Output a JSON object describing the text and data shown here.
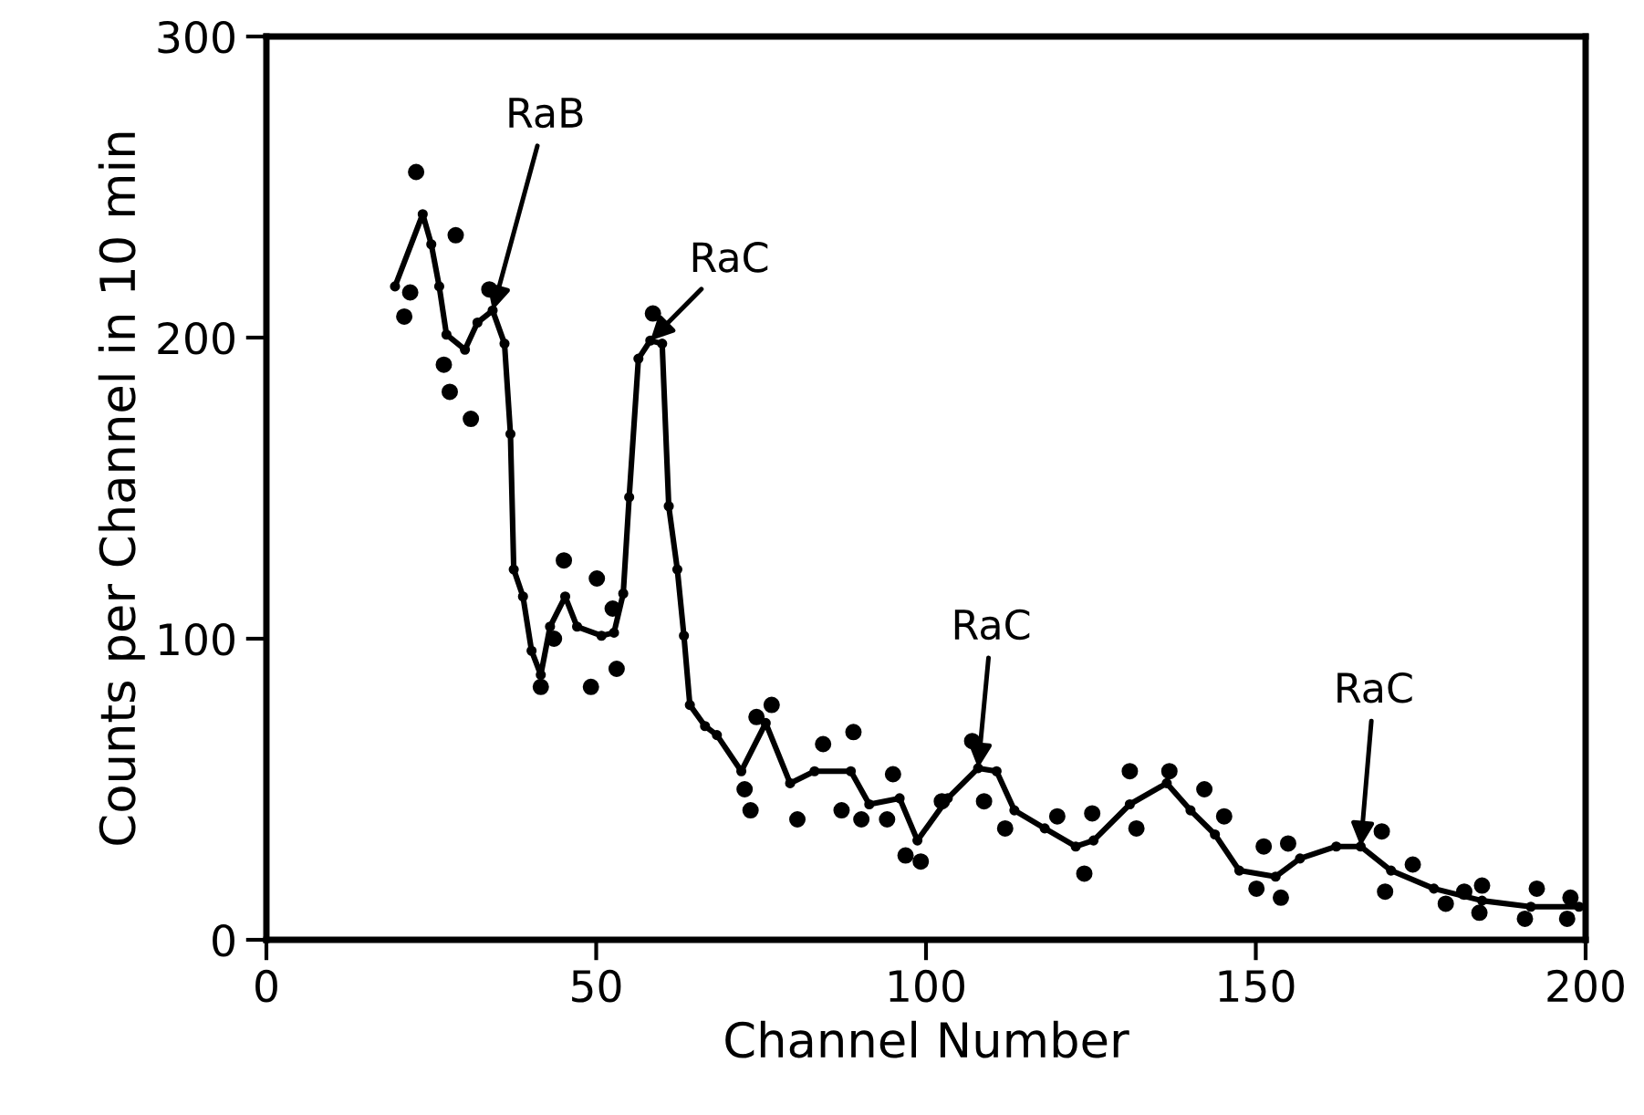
{
  "chart_data": {
    "type": "scatter",
    "xlabel": "Channel Number",
    "ylabel": "Counts per Channel in 10 min",
    "xlim": [
      0,
      200
    ],
    "ylim": [
      0,
      300
    ],
    "xticks": [
      0,
      50,
      100,
      150,
      200
    ],
    "yticks": [
      0,
      100,
      200,
      300
    ],
    "grid": false,
    "legend": false,
    "series": [
      {
        "color": "#000000",
        "marker": "circle",
        "x": [
          20.9,
          21.8,
          22.7,
          26.9,
          27.8,
          28.7,
          31,
          33.8,
          41.6,
          43.6,
          45.1,
          49.2,
          50.1,
          52.5,
          53.1,
          58.6,
          72.5,
          73.4,
          74.3,
          76.6,
          80.5,
          84.4,
          87.2,
          89,
          90.2,
          94.1,
          95,
          96.9,
          99.2,
          102.4,
          107,
          108.8,
          112,
          119.9,
          124,
          125.2,
          130.9,
          131.9,
          136.9,
          142.2,
          145.2,
          150.1,
          151.2,
          153.8,
          154.9,
          169.1,
          169.6,
          173.8,
          178.8,
          181.6,
          183.9,
          184.3,
          190.8,
          192.6,
          197.2,
          197.7
        ],
        "values": [
          207,
          215,
          255,
          191,
          182,
          234,
          173,
          216,
          84,
          100,
          126,
          84,
          120,
          110,
          90,
          208,
          50,
          43,
          74,
          78,
          40,
          65,
          43,
          69,
          40,
          40,
          55,
          28,
          26,
          46,
          66,
          46,
          37,
          41,
          22,
          42,
          56,
          37,
          56,
          50,
          41,
          17,
          31,
          14,
          32,
          36,
          16,
          25,
          12,
          16,
          9,
          18,
          7,
          17,
          7,
          14
        ]
      },
      {
        "type": "line",
        "color": "#000000",
        "marker": "circle",
        "line_style": "solid",
        "x": [
          19.5,
          23.7,
          25,
          26.2,
          27.3,
          30.1,
          32,
          34.3,
          36.1,
          37,
          37.5,
          38.9,
          40.2,
          41.6,
          43,
          45.3,
          47.1,
          50.8,
          52.7,
          54.1,
          55,
          56.4,
          58.2,
          60,
          61,
          62.3,
          63.3,
          64.2,
          66.5,
          68.3,
          72,
          75.7,
          79.4,
          83.1,
          88.6,
          91.4,
          96,
          98.7,
          103.3,
          107.9,
          110.7,
          113.4,
          118,
          122.7,
          125.4,
          130.9,
          136.5,
          140.1,
          143.8,
          147.5,
          153,
          156.7,
          162.2,
          165.9,
          170.5,
          177,
          184.3,
          191.7,
          199
        ],
        "values": [
          217,
          241,
          231,
          217,
          201,
          196,
          205,
          209,
          198,
          168,
          123,
          114,
          96,
          88,
          104,
          114,
          104,
          101,
          102,
          115,
          147,
          193,
          199,
          198,
          144,
          123,
          101,
          78,
          71,
          68,
          56,
          72,
          52,
          56,
          56,
          45,
          47,
          33,
          47,
          57,
          56,
          43,
          37,
          31,
          33,
          45,
          52,
          43,
          35,
          23,
          21,
          27,
          31,
          31,
          23,
          17,
          13,
          11,
          11
        ]
      }
    ],
    "annotations": [
      {
        "text": "RaB",
        "x": 34.3,
        "y": 209
      },
      {
        "text": "RaC",
        "x": 58.2,
        "y": 199
      },
      {
        "text": "RaC",
        "x": 107.9,
        "y": 57
      },
      {
        "text": "RaC",
        "x": 165.9,
        "y": 31
      }
    ]
  }
}
